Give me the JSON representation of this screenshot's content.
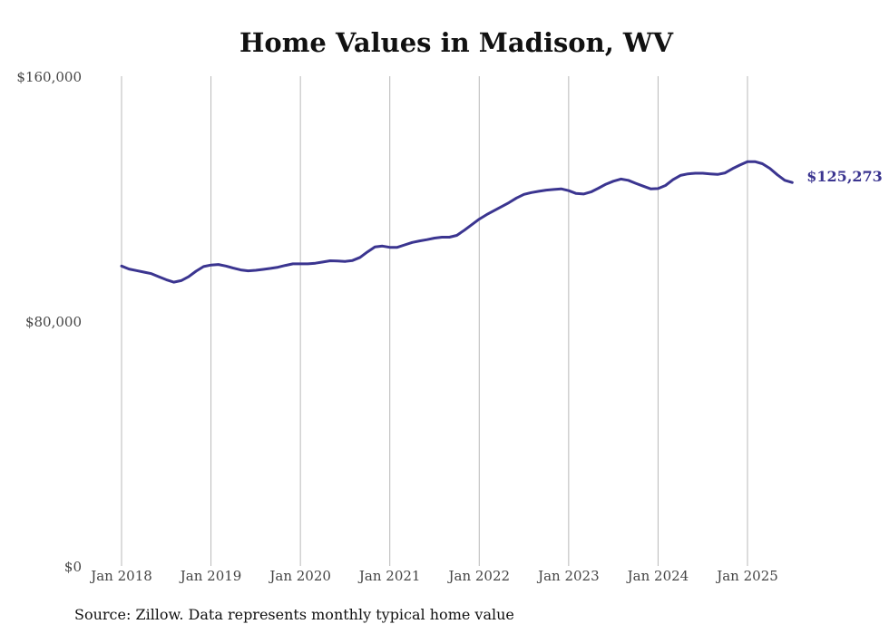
{
  "title": "Home Values in Madison, WV",
  "source": "Source: Zillow. Data represents monthly typical home value",
  "colors": {
    "line": "#3b3590",
    "grid": "#b8b8b8"
  },
  "chart_data": {
    "type": "line",
    "title": "Home Values in Madison, WV",
    "xlabel": "",
    "ylabel": "",
    "ylim": [
      0,
      160000
    ],
    "yticks": [
      {
        "value": 0,
        "label": "$0"
      },
      {
        "value": 80000,
        "label": "$80,000"
      },
      {
        "value": 160000,
        "label": "$160,000"
      }
    ],
    "xlim": [
      "2018-01",
      "2025-07"
    ],
    "xticks": [
      {
        "date": "2018-01",
        "label": "Jan 2018"
      },
      {
        "date": "2019-01",
        "label": "Jan 2019"
      },
      {
        "date": "2020-01",
        "label": "Jan 2020"
      },
      {
        "date": "2021-01",
        "label": "Jan 2021"
      },
      {
        "date": "2022-01",
        "label": "Jan 2022"
      },
      {
        "date": "2023-01",
        "label": "Jan 2023"
      },
      {
        "date": "2024-01",
        "label": "Jan 2024"
      },
      {
        "date": "2025-01",
        "label": "Jan 2025"
      }
    ],
    "grid": {
      "vertical": true,
      "horizontal": false
    },
    "end_label": "$125,273",
    "series": [
      {
        "x": [
          "2018-01",
          "2018-02",
          "2018-03",
          "2018-04",
          "2018-05",
          "2018-06",
          "2018-07",
          "2018-08",
          "2018-09",
          "2018-10",
          "2018-11",
          "2018-12",
          "2019-01",
          "2019-02",
          "2019-03",
          "2019-04",
          "2019-05",
          "2019-06",
          "2019-07",
          "2019-08",
          "2019-09",
          "2019-10",
          "2019-11",
          "2019-12",
          "2020-01",
          "2020-02",
          "2020-03",
          "2020-04",
          "2020-05",
          "2020-06",
          "2020-07",
          "2020-08",
          "2020-09",
          "2020-10",
          "2020-11",
          "2020-12",
          "2021-01",
          "2021-02",
          "2021-03",
          "2021-04",
          "2021-05",
          "2021-06",
          "2021-07",
          "2021-08",
          "2021-09",
          "2021-10",
          "2021-11",
          "2021-12",
          "2022-01",
          "2022-02",
          "2022-03",
          "2022-04",
          "2022-05",
          "2022-06",
          "2022-07",
          "2022-08",
          "2022-09",
          "2022-10",
          "2022-11",
          "2022-12",
          "2023-01",
          "2023-02",
          "2023-03",
          "2023-04",
          "2023-05",
          "2023-06",
          "2023-07",
          "2023-08",
          "2023-09",
          "2023-10",
          "2023-11",
          "2023-12",
          "2024-01",
          "2024-02",
          "2024-03",
          "2024-04",
          "2024-05",
          "2024-06",
          "2024-07",
          "2024-08",
          "2024-09",
          "2024-10",
          "2024-11",
          "2024-12",
          "2025-01",
          "2025-02",
          "2025-03",
          "2025-04",
          "2025-05",
          "2025-06",
          "2025-07"
        ],
        "values": [
          98000,
          97000,
          96500,
          96000,
          95500,
          94500,
          93500,
          92700,
          93200,
          94500,
          96300,
          97800,
          98300,
          98500,
          98000,
          97300,
          96700,
          96400,
          96600,
          96900,
          97200,
          97600,
          98200,
          98700,
          98700,
          98700,
          98900,
          99300,
          99700,
          99600,
          99500,
          99800,
          100800,
          102600,
          104200,
          104500,
          104100,
          104100,
          104900,
          105700,
          106200,
          106600,
          107100,
          107400,
          107400,
          108000,
          109700,
          111500,
          113300,
          114800,
          116100,
          117400,
          118700,
          120200,
          121400,
          122000,
          122400,
          122800,
          123000,
          123200,
          122600,
          121700,
          121500,
          122200,
          123400,
          124700,
          125700,
          126400,
          126000,
          125000,
          124100,
          123200,
          123300,
          124300,
          126200,
          127600,
          128100,
          128300,
          128300,
          128100,
          127900,
          128400,
          129800,
          131000,
          132100,
          132100,
          131400,
          129900,
          127800,
          126000,
          125273
        ]
      }
    ]
  }
}
